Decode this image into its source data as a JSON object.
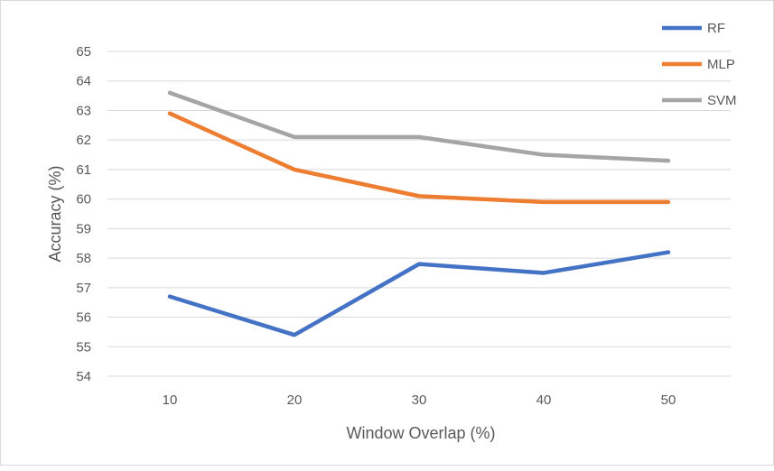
{
  "chart_data": {
    "type": "line",
    "title": "",
    "xlabel": "Window Overlap (%)",
    "ylabel": "Accuracy (%)",
    "categories": [
      "10",
      "20",
      "30",
      "40",
      "50"
    ],
    "ylim": [
      54,
      65
    ],
    "yticks": [
      "54",
      "55",
      "56",
      "57",
      "58",
      "59",
      "60",
      "61",
      "62",
      "63",
      "64",
      "65"
    ],
    "grid": "horizontal",
    "legend_position": "top-right",
    "series": [
      {
        "name": "RF",
        "color": "#4472c4",
        "values": [
          56.7,
          55.4,
          57.8,
          57.5,
          58.2
        ]
      },
      {
        "name": "MLP",
        "color": "#ed7d31",
        "values": [
          62.9,
          61.0,
          60.1,
          59.9,
          59.9
        ]
      },
      {
        "name": "SVM",
        "color": "#a5a5a5",
        "values": [
          63.6,
          62.1,
          62.1,
          61.5,
          61.3
        ]
      }
    ]
  }
}
